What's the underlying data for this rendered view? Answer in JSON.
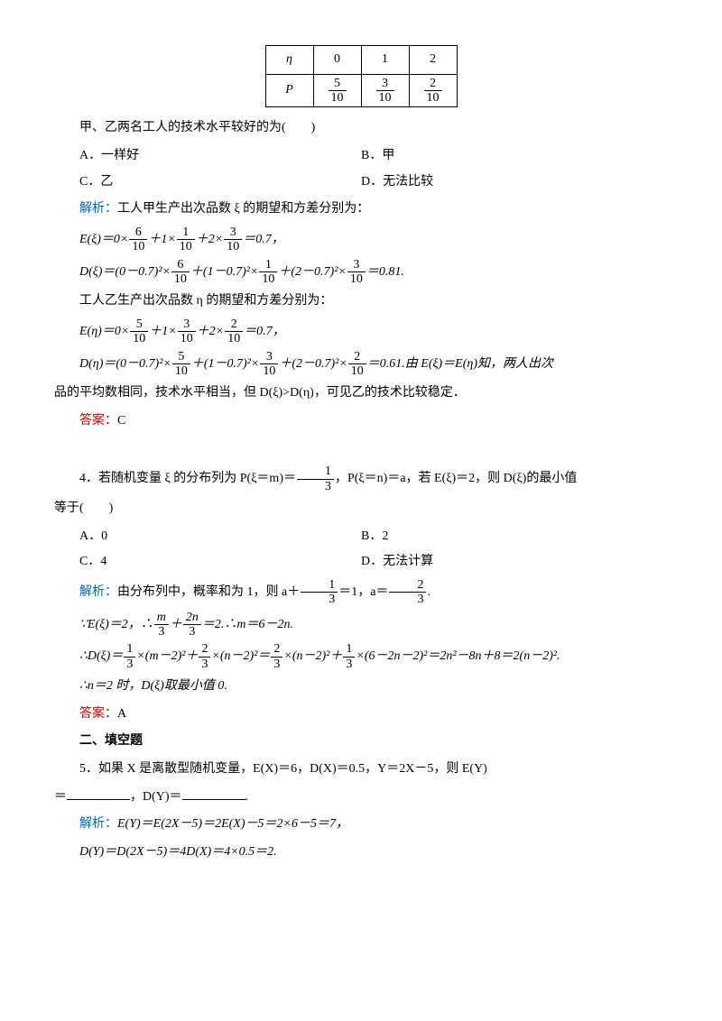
{
  "table": {
    "row1": {
      "c1": "η",
      "c2": "0",
      "c3": "1",
      "c4": "2"
    },
    "row2": {
      "c1": "P",
      "c2": {
        "num": "5",
        "den": "10"
      },
      "c3": {
        "num": "3",
        "den": "10"
      },
      "c4": {
        "num": "2",
        "den": "10"
      }
    }
  },
  "q3": {
    "stem": "甲、乙两名工人的技术水平较好的为(　　)",
    "optA": "A．一样好",
    "optB": "B．甲",
    "optC": "C．乙",
    "optD": "D．无法比较",
    "jiexiLabel": "解析：",
    "jiexi1": "工人甲生产出次品数 ξ 的期望和方差分别为：",
    "eq1a": "E(ξ)＝0×",
    "eq1f1": {
      "num": "6",
      "den": "10"
    },
    "eq1b": "＋1×",
    "eq1f2": {
      "num": "1",
      "den": "10"
    },
    "eq1c": "＋2×",
    "eq1f3": {
      "num": "3",
      "den": "10"
    },
    "eq1d": "＝0.7，",
    "eq2a": "D(ξ)＝(0－0.7)²×",
    "eq2f1": {
      "num": "6",
      "den": "10"
    },
    "eq2b": "＋(1－0.7)²×",
    "eq2f2": {
      "num": "1",
      "den": "10"
    },
    "eq2c": "＋(2－0.7)²×",
    "eq2f3": {
      "num": "3",
      "den": "10"
    },
    "eq2d": "＝0.81.",
    "jiexi2": "工人乙生产出次品数 η 的期望和方差分别为：",
    "eq3a": "E(η)＝0×",
    "eq3f1": {
      "num": "5",
      "den": "10"
    },
    "eq3b": "＋1×",
    "eq3f2": {
      "num": "3",
      "den": "10"
    },
    "eq3c": "＋2×",
    "eq3f3": {
      "num": "2",
      "den": "10"
    },
    "eq3d": "＝0.7，",
    "eq4a": "D(η)＝(0－0.7)²×",
    "eq4f1": {
      "num": "5",
      "den": "10"
    },
    "eq4b": "＋(1－0.7)²×",
    "eq4f2": {
      "num": "3",
      "den": "10"
    },
    "eq4c": "＋(2－0.7)²×",
    "eq4f3": {
      "num": "2",
      "den": "10"
    },
    "eq4d": "＝0.61.由 E(ξ)＝E(η)知，两人出次",
    "eq4e": "品的平均数相同，技术水平相当，但 D(ξ)>D(η)，可见乙的技术比较稳定．",
    "ansLabel": "答案：",
    "ans": "C"
  },
  "q4": {
    "stem1": "4．若随机变量 ξ 的分布列为 P(ξ＝m)＝",
    "stemf1": {
      "num": "1",
      "den": "3"
    },
    "stem2": "，P(ξ＝n)＝a，若 E(ξ)＝2，则 D(ξ)的最小值",
    "stem3": "等于(　　)",
    "optA": "A．0",
    "optB": "B．2",
    "optC": "C．4",
    "optD": "D．无法计算",
    "jiexiLabel": "解析：",
    "jiexi1a": "由分布列中，概率和为 1，则 a＋",
    "jiexi1f1": {
      "num": "1",
      "den": "3"
    },
    "jiexi1b": "＝1，a＝",
    "jiexi1f2": {
      "num": "2",
      "den": "3"
    },
    "jiexi1c": ".",
    "eq1a": "∵E(ξ)＝2，∴",
    "eq1f1": {
      "num": "m",
      "den": "3"
    },
    "eq1b": "＋",
    "eq1f2": {
      "num": "2n",
      "den": "3"
    },
    "eq1c": "＝2.∴m＝6－2n.",
    "eq2a": "∴D(ξ)＝",
    "eq2f1": {
      "num": "1",
      "den": "3"
    },
    "eq2b": "×(m－2)²＋",
    "eq2f2": {
      "num": "2",
      "den": "3"
    },
    "eq2c": "×(n－2)²＝",
    "eq2f3": {
      "num": "2",
      "den": "3"
    },
    "eq2d": "×(n－2)²＋",
    "eq2f4": {
      "num": "1",
      "den": "3"
    },
    "eq2e": "×(6－2n－2)²＝2n²－8n＋8＝2(n－2)².",
    "eq3": "∴n＝2 时，D(ξ)取最小值 0.",
    "ansLabel": "答案：",
    "ans": "A"
  },
  "sec2": "二、填空题",
  "q5": {
    "stem1": "5．如果 X 是离散型随机变量，E(X)＝6，D(X)＝0.5，Y＝2X－5，则 E(Y)",
    "stem2a": "＝",
    "stem2b": "，D(Y)＝",
    "stem2c": ".",
    "jiexiLabel": "解析：",
    "jiexi1": "E(Y)＝E(2X－5)＝2E(X)－5＝2×6－5＝7，",
    "jiexi2": "D(Y)＝D(2X－5)＝4D(X)＝4×0.5＝2."
  },
  "colors": {
    "text": "#000000",
    "blue": "#0066cc",
    "red": "#cc0000",
    "background": "#ffffff"
  }
}
